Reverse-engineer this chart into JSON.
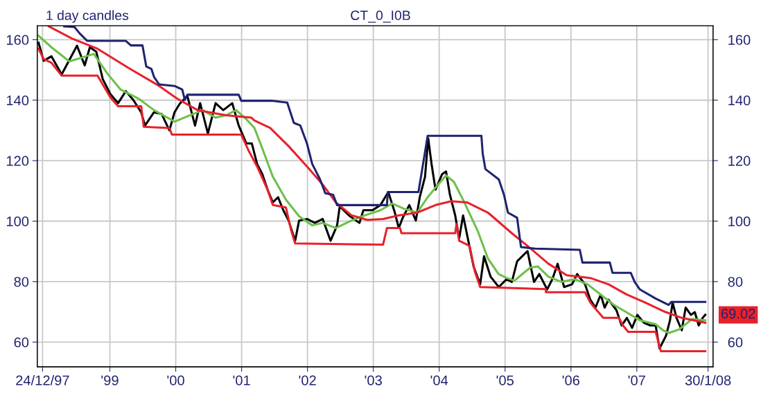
{
  "chart_data": {
    "type": "line",
    "title": "1 day candles",
    "subtitle": "CT_0_I0B",
    "xlim": [
      1997.898,
      2008.158
    ],
    "xticks": [
      {
        "value": 1997.978,
        "label": "24/12/97"
      },
      {
        "value": 1999,
        "label": "'99"
      },
      {
        "value": 2000,
        "label": "'00"
      },
      {
        "value": 2001,
        "label": "'01"
      },
      {
        "value": 2002,
        "label": "'02"
      },
      {
        "value": 2003,
        "label": "'03"
      },
      {
        "value": 2004,
        "label": "'04"
      },
      {
        "value": 2005,
        "label": "'05"
      },
      {
        "value": 2006,
        "label": "'06"
      },
      {
        "value": 2007,
        "label": "'07"
      },
      {
        "value": 2008.082,
        "label": "30/1/08"
      }
    ],
    "ylim": [
      51.8,
      164.6
    ],
    "yticks": [
      60,
      80,
      100,
      120,
      140,
      160
    ],
    "y2lim": [
      51.8,
      164.6
    ],
    "y2ticks": [
      60,
      80,
      100,
      120,
      140,
      160
    ],
    "grid": true,
    "marker": "none",
    "line_style": "solid",
    "annotations": [
      "69.02"
    ],
    "series": [
      {
        "color": "#000000",
        "x": [
          1997.917,
          1997.995,
          1998.112,
          1998.268,
          1998.501,
          1998.618,
          1998.696,
          1998.794,
          1998.891,
          1999.008,
          1999.125,
          1999.242,
          1999.358,
          1999.475,
          1999.534,
          1999.67,
          1999.787,
          1999.904,
          1999.982,
          2000.06,
          2000.176,
          2000.293,
          2000.371,
          2000.488,
          2000.605,
          2000.722,
          2000.858,
          2000.956,
          2001.072,
          2001.155,
          2001.235,
          2001.315,
          2001.394,
          2001.474,
          2001.554,
          2001.633,
          2001.713,
          2001.813,
          2001.873,
          2001.992,
          2002.112,
          2002.231,
          2002.351,
          2002.45,
          2002.49,
          2002.629,
          2002.789,
          2002.849,
          2002.988,
          2003.108,
          2003.227,
          2003.327,
          2003.386,
          2003.446,
          2003.546,
          2003.645,
          2003.705,
          2003.785,
          2003.833,
          2003.884,
          2003.944,
          2004.044,
          2004.104,
          2004.163,
          2004.243,
          2004.303,
          2004.363,
          2004.442,
          2004.522,
          2004.622,
          2004.681,
          2004.781,
          2004.905,
          2005.024,
          2005.103,
          2005.183,
          2005.262,
          2005.341,
          2005.381,
          2005.44,
          2005.52,
          2005.639,
          2005.718,
          2005.798,
          2005.897,
          2006.016,
          2006.095,
          2006.214,
          2006.294,
          2006.373,
          2006.452,
          2006.512,
          2006.571,
          2006.69,
          2006.77,
          2006.849,
          2006.929,
          2007.008,
          2007.107,
          2007.206,
          2007.286,
          2007.345,
          2007.444,
          2007.504,
          2007.544,
          2007.603,
          2007.683,
          2007.742,
          2007.821,
          2007.881,
          2007.94,
          2008.0,
          2008.04
        ],
        "values": [
          159,
          153,
          154.5,
          148.5,
          158,
          151.5,
          157.5,
          156,
          147,
          142,
          139,
          143,
          140,
          136,
          131.6,
          136,
          135.4,
          130,
          136,
          138.8,
          141.4,
          131.6,
          139,
          129,
          139,
          136.7,
          139,
          131.6,
          125.7,
          125.7,
          118.9,
          115.5,
          110.4,
          106.2,
          107.9,
          103.6,
          100.2,
          93.5,
          100.2,
          100.7,
          99.4,
          100.7,
          93.5,
          98.6,
          104.9,
          101.9,
          99.4,
          103.6,
          103.6,
          105.3,
          109.6,
          102.8,
          97.7,
          101.1,
          105.3,
          100.2,
          107.9,
          114.7,
          127.4,
          118.9,
          110.4,
          115.5,
          116.4,
          108.7,
          101.9,
          94.3,
          101.9,
          93.5,
          85,
          79.1,
          88.4,
          81.6,
          78.2,
          80.8,
          79.9,
          86.7,
          88.4,
          90.1,
          85.9,
          79.9,
          82.5,
          77.4,
          80.8,
          85.9,
          78.2,
          79.1,
          82.5,
          79.1,
          74,
          71.4,
          75.7,
          71.4,
          74,
          70.6,
          65.5,
          68,
          64.7,
          69,
          66.4,
          65.5,
          65.5,
          57.9,
          62.1,
          67.2,
          73.1,
          68,
          63.9,
          71.4,
          69,
          69.9,
          65.5,
          68,
          69
        ]
      },
      {
        "color": "#6cc04a",
        "x": [
          1997.917,
          1998.112,
          1998.384,
          1998.579,
          1998.755,
          1998.969,
          1999.164,
          1999.436,
          1999.67,
          1999.982,
          2000.215,
          2000.41,
          2000.605,
          2000.761,
          2000.917,
          2001.072,
          2001.195,
          2001.315,
          2001.474,
          2001.673,
          2001.873,
          2002.072,
          2002.231,
          2002.43,
          2002.669,
          2002.869,
          2003.108,
          2003.287,
          2003.466,
          2003.665,
          2003.825,
          2003.984,
          2004.104,
          2004.223,
          2004.382,
          2004.582,
          2004.741,
          2004.9,
          2005.024,
          2005.143,
          2005.262,
          2005.381,
          2005.5,
          2005.659,
          2005.857,
          2006.056,
          2006.254,
          2006.452,
          2006.651,
          2006.849,
          2007.048,
          2007.286,
          2007.405,
          2007.484,
          2007.643,
          2007.841,
          2008.04
        ],
        "values": [
          161.3,
          157.5,
          152.8,
          154.1,
          155.3,
          148.6,
          143.5,
          140.5,
          136.7,
          132.9,
          135,
          136.7,
          134.2,
          135,
          136.7,
          133.7,
          130.8,
          124,
          114.7,
          107.1,
          101.6,
          98.6,
          99.4,
          97.7,
          100.2,
          101.9,
          103.6,
          105.8,
          104.1,
          102.8,
          107.9,
          112.1,
          115.1,
          113,
          106.2,
          96.9,
          87.6,
          82.5,
          81.2,
          80.3,
          82.5,
          84.6,
          85,
          81.6,
          79.9,
          80.8,
          79.1,
          75.7,
          72.3,
          69.8,
          67.2,
          65.9,
          63.8,
          63,
          64.2,
          67.6,
          67.2
        ]
      },
      {
        "color": "#e8212b",
        "x": [
          1998.073,
          1998.423,
          1998.813,
          1999.28,
          1999.748,
          2000.021,
          2000.332,
          2000.761,
          2001.15,
          2001.195,
          2001.434,
          2001.713,
          2001.992,
          2002.231,
          2002.43,
          2002.669,
          2002.908,
          2003.147,
          2003.386,
          2003.665,
          2003.944,
          2004.183,
          2004.422,
          2004.741,
          2005.103,
          2005.341,
          2005.659,
          2005.937,
          2006.294,
          2006.571,
          2006.849,
          2007.127,
          2007.405,
          2007.683,
          2008.04
        ],
        "values": [
          164.4,
          160.4,
          157,
          150.7,
          144.7,
          140.5,
          136.7,
          135,
          134.2,
          133.3,
          130.8,
          124.8,
          118.1,
          112.1,
          106.2,
          101.9,
          100.4,
          100.7,
          101.9,
          102.8,
          105.3,
          106.6,
          106.2,
          102.8,
          96,
          91.8,
          85.9,
          82.1,
          81.2,
          79.1,
          75.7,
          73.1,
          70.2,
          68,
          66.4
        ]
      },
      {
        "color": "#1f2370",
        "x": [
          1998.307,
          1998.462,
          1998.54,
          1998.657,
          1999.242,
          1999.319,
          1999.495,
          1999.553,
          1999.631,
          1999.67,
          1999.748,
          1999.982,
          2000.099,
          2000.138,
          2000.176,
          2000.956,
          2000.995,
          2001.454,
          2001.693,
          2001.793,
          2001.892,
          2001.992,
          2002.072,
          2002.191,
          2002.271,
          2002.39,
          2002.45,
          2003.207,
          2003.219,
          2003.685,
          2003.825,
          2004.641,
          2004.661,
          2004.701,
          2004.905,
          2004.984,
          2005.044,
          2005.183,
          2005.242,
          2005.46,
          2006.135,
          2006.175,
          2006.591,
          2006.631,
          2006.909,
          2006.968,
          2007.048,
          2007.286,
          2007.484,
          2007.524,
          2008.04
        ],
        "values": [
          164.4,
          164.2,
          162.1,
          159.6,
          159.6,
          158.1,
          158.1,
          151.1,
          150.3,
          147.7,
          145.2,
          144.7,
          143.5,
          140.1,
          141.8,
          141.8,
          139.8,
          139.8,
          139.2,
          132.5,
          131.6,
          125.7,
          118.9,
          113.8,
          109.2,
          108.7,
          105.3,
          105.3,
          109.6,
          109.6,
          128.2,
          128.2,
          122.3,
          117.2,
          113.8,
          108.7,
          102.8,
          101.1,
          91.4,
          90.9,
          90.5,
          86.3,
          86.3,
          82.9,
          82.9,
          79.9,
          77.4,
          74.4,
          72.3,
          73.3,
          73.3
        ]
      },
      {
        "color": "#e8212b",
        "x": [
          1997.917,
          1997.995,
          1998.112,
          1998.268,
          1998.813,
          1998.891,
          1999.008,
          1999.125,
          1999.475,
          1999.514,
          1999.904,
          1999.943,
          2000.995,
          2001.111,
          2001.235,
          2001.394,
          2001.474,
          2001.673,
          2001.753,
          2001.813,
          2003.147,
          2003.207,
          2003.406,
          2003.426,
          2004.243,
          2004.263,
          2004.303,
          2004.462,
          2004.542,
          2004.622,
          2005.619,
          2005.62,
          2006.214,
          2006.294,
          2006.373,
          2006.492,
          2006.73,
          2006.79,
          2006.869,
          2007.286,
          2007.365,
          2008.04
        ],
        "values": [
          157,
          153.6,
          152.4,
          148.1,
          148.1,
          145.2,
          140.9,
          138,
          138,
          131.2,
          130.8,
          128.6,
          128.6,
          123.1,
          118.1,
          110.4,
          105.3,
          104.5,
          96.9,
          92.6,
          92.2,
          97.7,
          97.7,
          96,
          96,
          99,
          93.5,
          91.8,
          83.3,
          78.2,
          77.5,
          76.5,
          76.5,
          73.1,
          71,
          68,
          68,
          65.5,
          63.4,
          63.4,
          57,
          57
        ]
      }
    ]
  }
}
